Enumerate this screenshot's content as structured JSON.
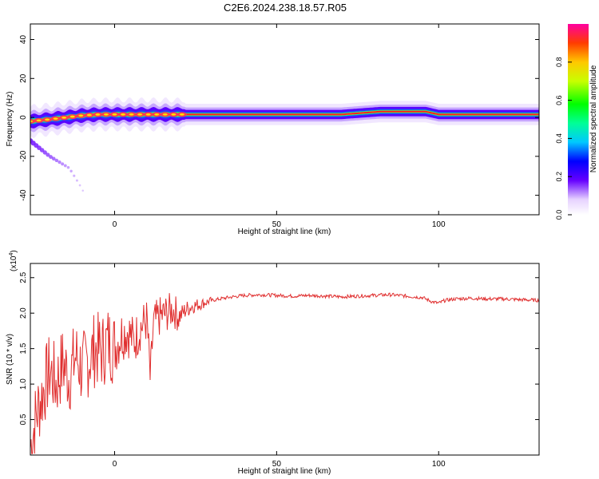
{
  "title": "C2E6.2024.238.18.57.R05",
  "chart_data": [
    {
      "type": "heatmap",
      "title": "C2E6.2024.238.18.57.R05",
      "xlabel": "Height of straight line (km)",
      "ylabel": "Frequency (Hz)",
      "xlim": [
        -26,
        131
      ],
      "ylim": [
        -50,
        48
      ],
      "xticks": [
        0,
        50,
        100
      ],
      "yticks": [
        -40,
        -20,
        0,
        20,
        40
      ],
      "colorbar": {
        "label": "Normalized spectral amplitude",
        "range": [
          0,
          1
        ],
        "ticks": [
          "0.0",
          "0.2",
          "0.4",
          "0.6",
          "0.8"
        ]
      },
      "ridge": {
        "description": "dominant spectral peak",
        "x": [
          -26,
          -20,
          -15,
          -10,
          -5,
          0,
          10,
          20,
          30,
          50,
          70,
          82,
          90,
          96,
          100,
          115,
          131
        ],
        "y": [
          -2,
          -1,
          0,
          1,
          1.5,
          1.5,
          1.5,
          1.5,
          1.5,
          1.5,
          1.5,
          3,
          3,
          3,
          1.5,
          1.5,
          1.5
        ]
      },
      "side_branch": {
        "description": "weak descending branch",
        "x": [
          -26,
          -23,
          -20,
          -17,
          -14,
          -11,
          -9
        ],
        "y": [
          -12,
          -16,
          -20,
          -23,
          -26,
          -34,
          -40
        ]
      },
      "grid": false
    },
    {
      "type": "line",
      "xlabel": "Height of straight line (km)",
      "ylabel": "SNR (10 * v/v)",
      "multiplier_label": "(x10",
      "multiplier_exp": "4",
      "xlim": [
        -26,
        131
      ],
      "ylim": [
        0,
        2.7
      ],
      "xticks": [
        0,
        50,
        100
      ],
      "yticks": [
        "0.5",
        "1.0",
        "1.5",
        "2.0",
        "2.5"
      ],
      "color": "#e03030",
      "series": [
        {
          "x": [
            -26,
            -24,
            -22,
            -20,
            -18,
            -16,
            -14,
            -12,
            -10,
            -8,
            -6,
            -4,
            -2,
            0,
            2,
            4,
            6,
            8,
            10,
            11,
            12,
            14,
            16,
            18,
            20,
            22,
            24,
            26,
            28,
            30,
            35,
            40,
            45,
            50,
            55,
            60,
            65,
            70,
            75,
            80,
            85,
            90,
            95,
            98,
            100,
            102,
            105,
            110,
            115,
            120,
            125,
            131
          ],
          "y": [
            0.1,
            0.6,
            0.9,
            1.2,
            1.0,
            1.3,
            1.1,
            1.4,
            1.2,
            1.35,
            1.5,
            1.45,
            1.6,
            1.5,
            1.7,
            1.75,
            1.6,
            1.8,
            1.9,
            1.05,
            1.85,
            1.95,
            2.0,
            2.05,
            1.95,
            2.05,
            2.1,
            2.12,
            2.15,
            2.18,
            2.22,
            2.25,
            2.26,
            2.25,
            2.24,
            2.25,
            2.24,
            2.23,
            2.24,
            2.25,
            2.26,
            2.24,
            2.22,
            2.16,
            2.14,
            2.18,
            2.2,
            2.21,
            2.2,
            2.2,
            2.19,
            2.18
          ]
        }
      ],
      "grid": false
    }
  ]
}
